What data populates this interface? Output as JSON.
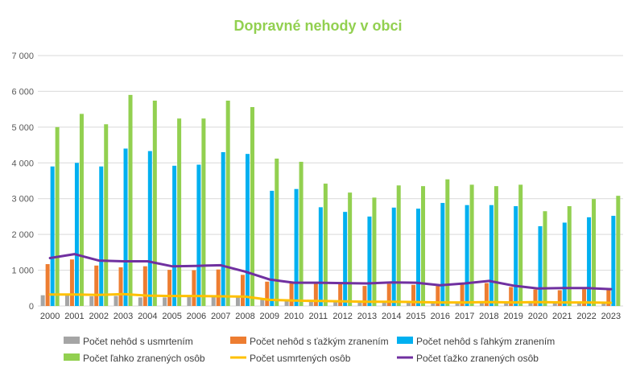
{
  "chart_data": {
    "type": "bar",
    "title": "Dopravné nehody v obci",
    "categories": [
      "2000",
      "2001",
      "2002",
      "2003",
      "2004",
      "2005",
      "2006",
      "2007",
      "2008",
      "2009",
      "2010",
      "2011",
      "2012",
      "2013",
      "2014",
      "2015",
      "2016",
      "2017",
      "2018",
      "2019",
      "2020",
      "2021",
      "2022",
      "2023"
    ],
    "ylim": [
      0,
      7000
    ],
    "yticks": [
      0,
      1000,
      2000,
      3000,
      4000,
      5000,
      6000,
      7000
    ],
    "ytick_labels": [
      "0",
      "1 000",
      "2 000",
      "3 000",
      "4 000",
      "5 000",
      "6 000",
      "7 000"
    ],
    "grid": true,
    "legend_position": "bottom",
    "series": [
      {
        "name": "Počet nehôd s usmrtením",
        "kind": "bar",
        "color": "#a5a5a5",
        "values": [
          300,
          310,
          270,
          280,
          240,
          240,
          250,
          260,
          240,
          170,
          150,
          140,
          130,
          110,
          110,
          100,
          110,
          100,
          110,
          90,
          100,
          100,
          100,
          90
        ]
      },
      {
        "name": "Počet nehôd s ťažkým zranením",
        "kind": "bar",
        "color": "#ed7d31",
        "values": [
          1170,
          1300,
          1130,
          1080,
          1110,
          1010,
          1000,
          1020,
          870,
          680,
          650,
          630,
          610,
          560,
          620,
          590,
          560,
          610,
          640,
          530,
          460,
          440,
          470,
          450
        ]
      },
      {
        "name": "Počet nehôd s ľahkým zranením",
        "kind": "bar",
        "color": "#00b0f0",
        "values": [
          3900,
          4000,
          3900,
          4400,
          4330,
          3920,
          3950,
          4300,
          4250,
          3220,
          3270,
          2760,
          2630,
          2500,
          2750,
          2720,
          2880,
          2820,
          2820,
          2790,
          2230,
          2330,
          2480,
          2520
        ]
      },
      {
        "name": "Počet ľahko zranených osôb",
        "kind": "bar",
        "color": "#92d050",
        "values": [
          5000,
          5370,
          5080,
          5900,
          5740,
          5240,
          5240,
          5740,
          5560,
          4120,
          4030,
          3420,
          3170,
          3030,
          3370,
          3350,
          3540,
          3390,
          3350,
          3390,
          2650,
          2790,
          2990,
          3080
        ]
      },
      {
        "name": "Počet usmrtených osôb",
        "kind": "line",
        "color": "#ffc000",
        "values": [
          320,
          320,
          310,
          330,
          290,
          280,
          280,
          270,
          260,
          170,
          150,
          140,
          130,
          120,
          120,
          110,
          100,
          100,
          110,
          100,
          110,
          100,
          100,
          90
        ]
      },
      {
        "name": "Počet ťažko zranených osôb",
        "kind": "line",
        "color": "#7030a0",
        "values": [
          1340,
          1450,
          1270,
          1250,
          1250,
          1110,
          1120,
          1140,
          960,
          740,
          650,
          650,
          640,
          630,
          660,
          650,
          580,
          630,
          700,
          570,
          490,
          500,
          500,
          470
        ]
      }
    ]
  }
}
